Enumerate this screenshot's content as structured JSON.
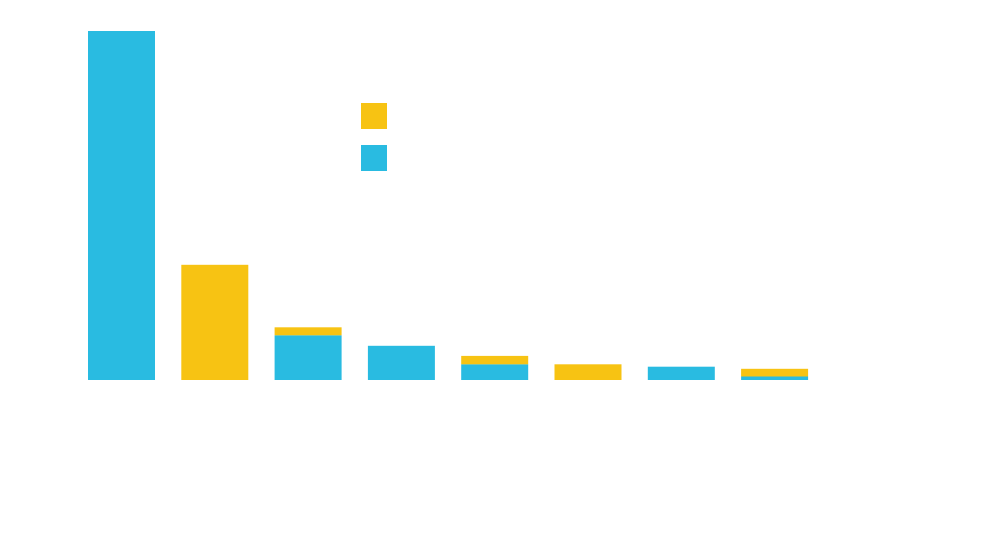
{
  "chart_data": {
    "type": "bar",
    "stacked": true,
    "categories": [
      "",
      "",
      "",
      "",
      "",
      "",
      "",
      ""
    ],
    "series": [
      {
        "color": "#29bbe1",
        "values": [
          100,
          0,
          12.8,
          9.8,
          4.5,
          0,
          3.8,
          1.0
        ]
      },
      {
        "color": "#f7c313",
        "values": [
          0,
          33,
          2.3,
          0,
          2.4,
          4.5,
          0,
          2.2
        ]
      }
    ],
    "ylim": [
      0,
      100
    ],
    "grid": false,
    "legend_position": "top-center"
  }
}
